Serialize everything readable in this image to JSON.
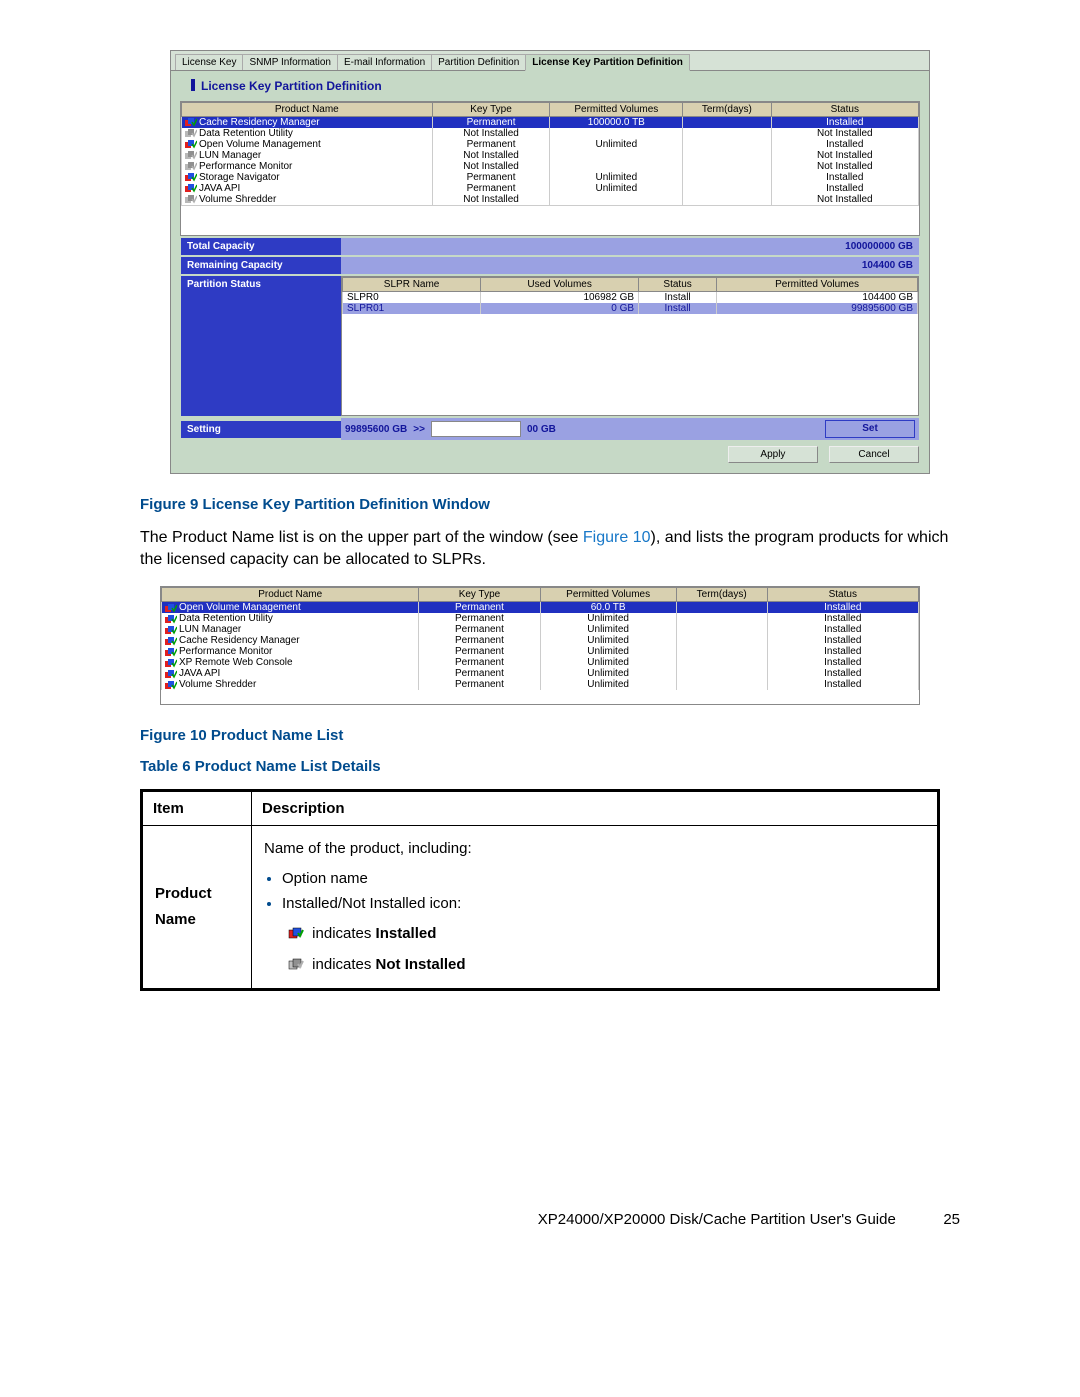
{
  "figure9": {
    "tabs": [
      "License Key",
      "SNMP Information",
      "E-mail Information",
      "Partition Definition",
      "License Key Partition Definition"
    ],
    "active_tab": 4,
    "section_title": "License Key Partition Definition",
    "columns": [
      "Product Name",
      "Key Type",
      "Permitted Volumes",
      "Term(days)",
      "Status"
    ],
    "rows": [
      {
        "name": "Cache Residency Manager",
        "key": "Permanent",
        "vol": "100000.0 TB",
        "term": "",
        "status": "Installed",
        "sel": true,
        "inst": true
      },
      {
        "name": "Data Retention Utility",
        "key": "Not Installed",
        "vol": "",
        "term": "",
        "status": "Not Installed",
        "inst": false
      },
      {
        "name": "Open Volume Management",
        "key": "Permanent",
        "vol": "Unlimited",
        "term": "",
        "status": "Installed",
        "inst": true
      },
      {
        "name": "LUN Manager",
        "key": "Not Installed",
        "vol": "",
        "term": "",
        "status": "Not Installed",
        "inst": false
      },
      {
        "name": "Performance Monitor",
        "key": "Not Installed",
        "vol": "",
        "term": "",
        "status": "Not Installed",
        "inst": false
      },
      {
        "name": "Storage Navigator",
        "key": "Permanent",
        "vol": "Unlimited",
        "term": "",
        "status": "Installed",
        "inst": true
      },
      {
        "name": "JAVA API",
        "key": "Permanent",
        "vol": "Unlimited",
        "term": "",
        "status": "Installed",
        "inst": true
      },
      {
        "name": "Volume Shredder",
        "key": "Not Installed",
        "vol": "",
        "term": "",
        "status": "Not Installed",
        "inst": false
      }
    ],
    "total_capacity_label": "Total Capacity",
    "total_capacity_value": "100000000 GB",
    "remaining_capacity_label": "Remaining Capacity",
    "remaining_capacity_value": "104400 GB",
    "partition_status_label": "Partition Status",
    "partition_columns": [
      "SLPR Name",
      "Used Volumes",
      "Status",
      "Permitted Volumes"
    ],
    "partition_rows": [
      {
        "name": "SLPR0",
        "used": "106982 GB",
        "status": "Install",
        "perm": "104400 GB"
      },
      {
        "name": "SLPR01",
        "used": "0 GB",
        "status": "Install",
        "perm": "99895600 GB",
        "sel": true
      }
    ],
    "setting_label": "Setting",
    "setting_left": "99895600 GB",
    "setting_arrow": ">>",
    "setting_right": "00 GB",
    "set_button": "Set",
    "apply_button": "Apply",
    "cancel_button": "Cancel"
  },
  "caption9": "Figure 9 License Key Partition Definition Window",
  "paragraph_a": "The Product Name list is on the upper part of the window (see ",
  "paragraph_link": "Figure 10",
  "paragraph_b": "), and lists the program products for which the licensed capacity can be allocated to SLPRs.",
  "figure10": {
    "columns": [
      "Product Name",
      "Key Type",
      "Permitted Volumes",
      "Term(days)",
      "Status"
    ],
    "rows": [
      {
        "name": "Open Volume Management",
        "key": "Permanent",
        "vol": "60.0 TB",
        "term": "",
        "status": "Installed",
        "sel": true,
        "inst": true
      },
      {
        "name": "Data Retention Utility",
        "key": "Permanent",
        "vol": "Unlimited",
        "term": "",
        "status": "Installed",
        "inst": true
      },
      {
        "name": "LUN Manager",
        "key": "Permanent",
        "vol": "Unlimited",
        "term": "",
        "status": "Installed",
        "inst": true
      },
      {
        "name": "Cache Residency Manager",
        "key": "Permanent",
        "vol": "Unlimited",
        "term": "",
        "status": "Installed",
        "inst": true
      },
      {
        "name": "Performance Monitor",
        "key": "Permanent",
        "vol": "Unlimited",
        "term": "",
        "status": "Installed",
        "inst": true
      },
      {
        "name": "XP Remote Web Console",
        "key": "Permanent",
        "vol": "Unlimited",
        "term": "",
        "status": "Installed",
        "inst": true
      },
      {
        "name": "JAVA API",
        "key": "Permanent",
        "vol": "Unlimited",
        "term": "",
        "status": "Installed",
        "inst": true
      },
      {
        "name": "Volume Shredder",
        "key": "Permanent",
        "vol": "Unlimited",
        "term": "",
        "status": "Installed",
        "inst": true
      }
    ]
  },
  "caption10": "Figure 10 Product Name List",
  "caption_t6": "Table 6 Product Name List Details",
  "table6": {
    "headers": [
      "Item",
      "Description"
    ],
    "item": "Product Name",
    "desc_intro": "Name of the product, including:",
    "bullet1": "Option name",
    "bullet2": "Installed/Not Installed icon:",
    "ind_installed_pre": "indicates ",
    "ind_installed_bold": "Installed",
    "ind_notinstalled_pre": "indicates ",
    "ind_notinstalled_bold": "Not Installed"
  },
  "footer_text": "XP24000/XP20000 Disk/Cache Partition User's Guide",
  "page_number": "25",
  "colors": {
    "accent_blue": "#004b8d",
    "link_blue": "#1878c8",
    "ui_darkblue": "#2e3bc4",
    "ui_lilac": "#9aa1e2",
    "select_blue": "#2030c0",
    "header_tan": "#d8d0b0",
    "win_bg": "#c6d9c6"
  }
}
